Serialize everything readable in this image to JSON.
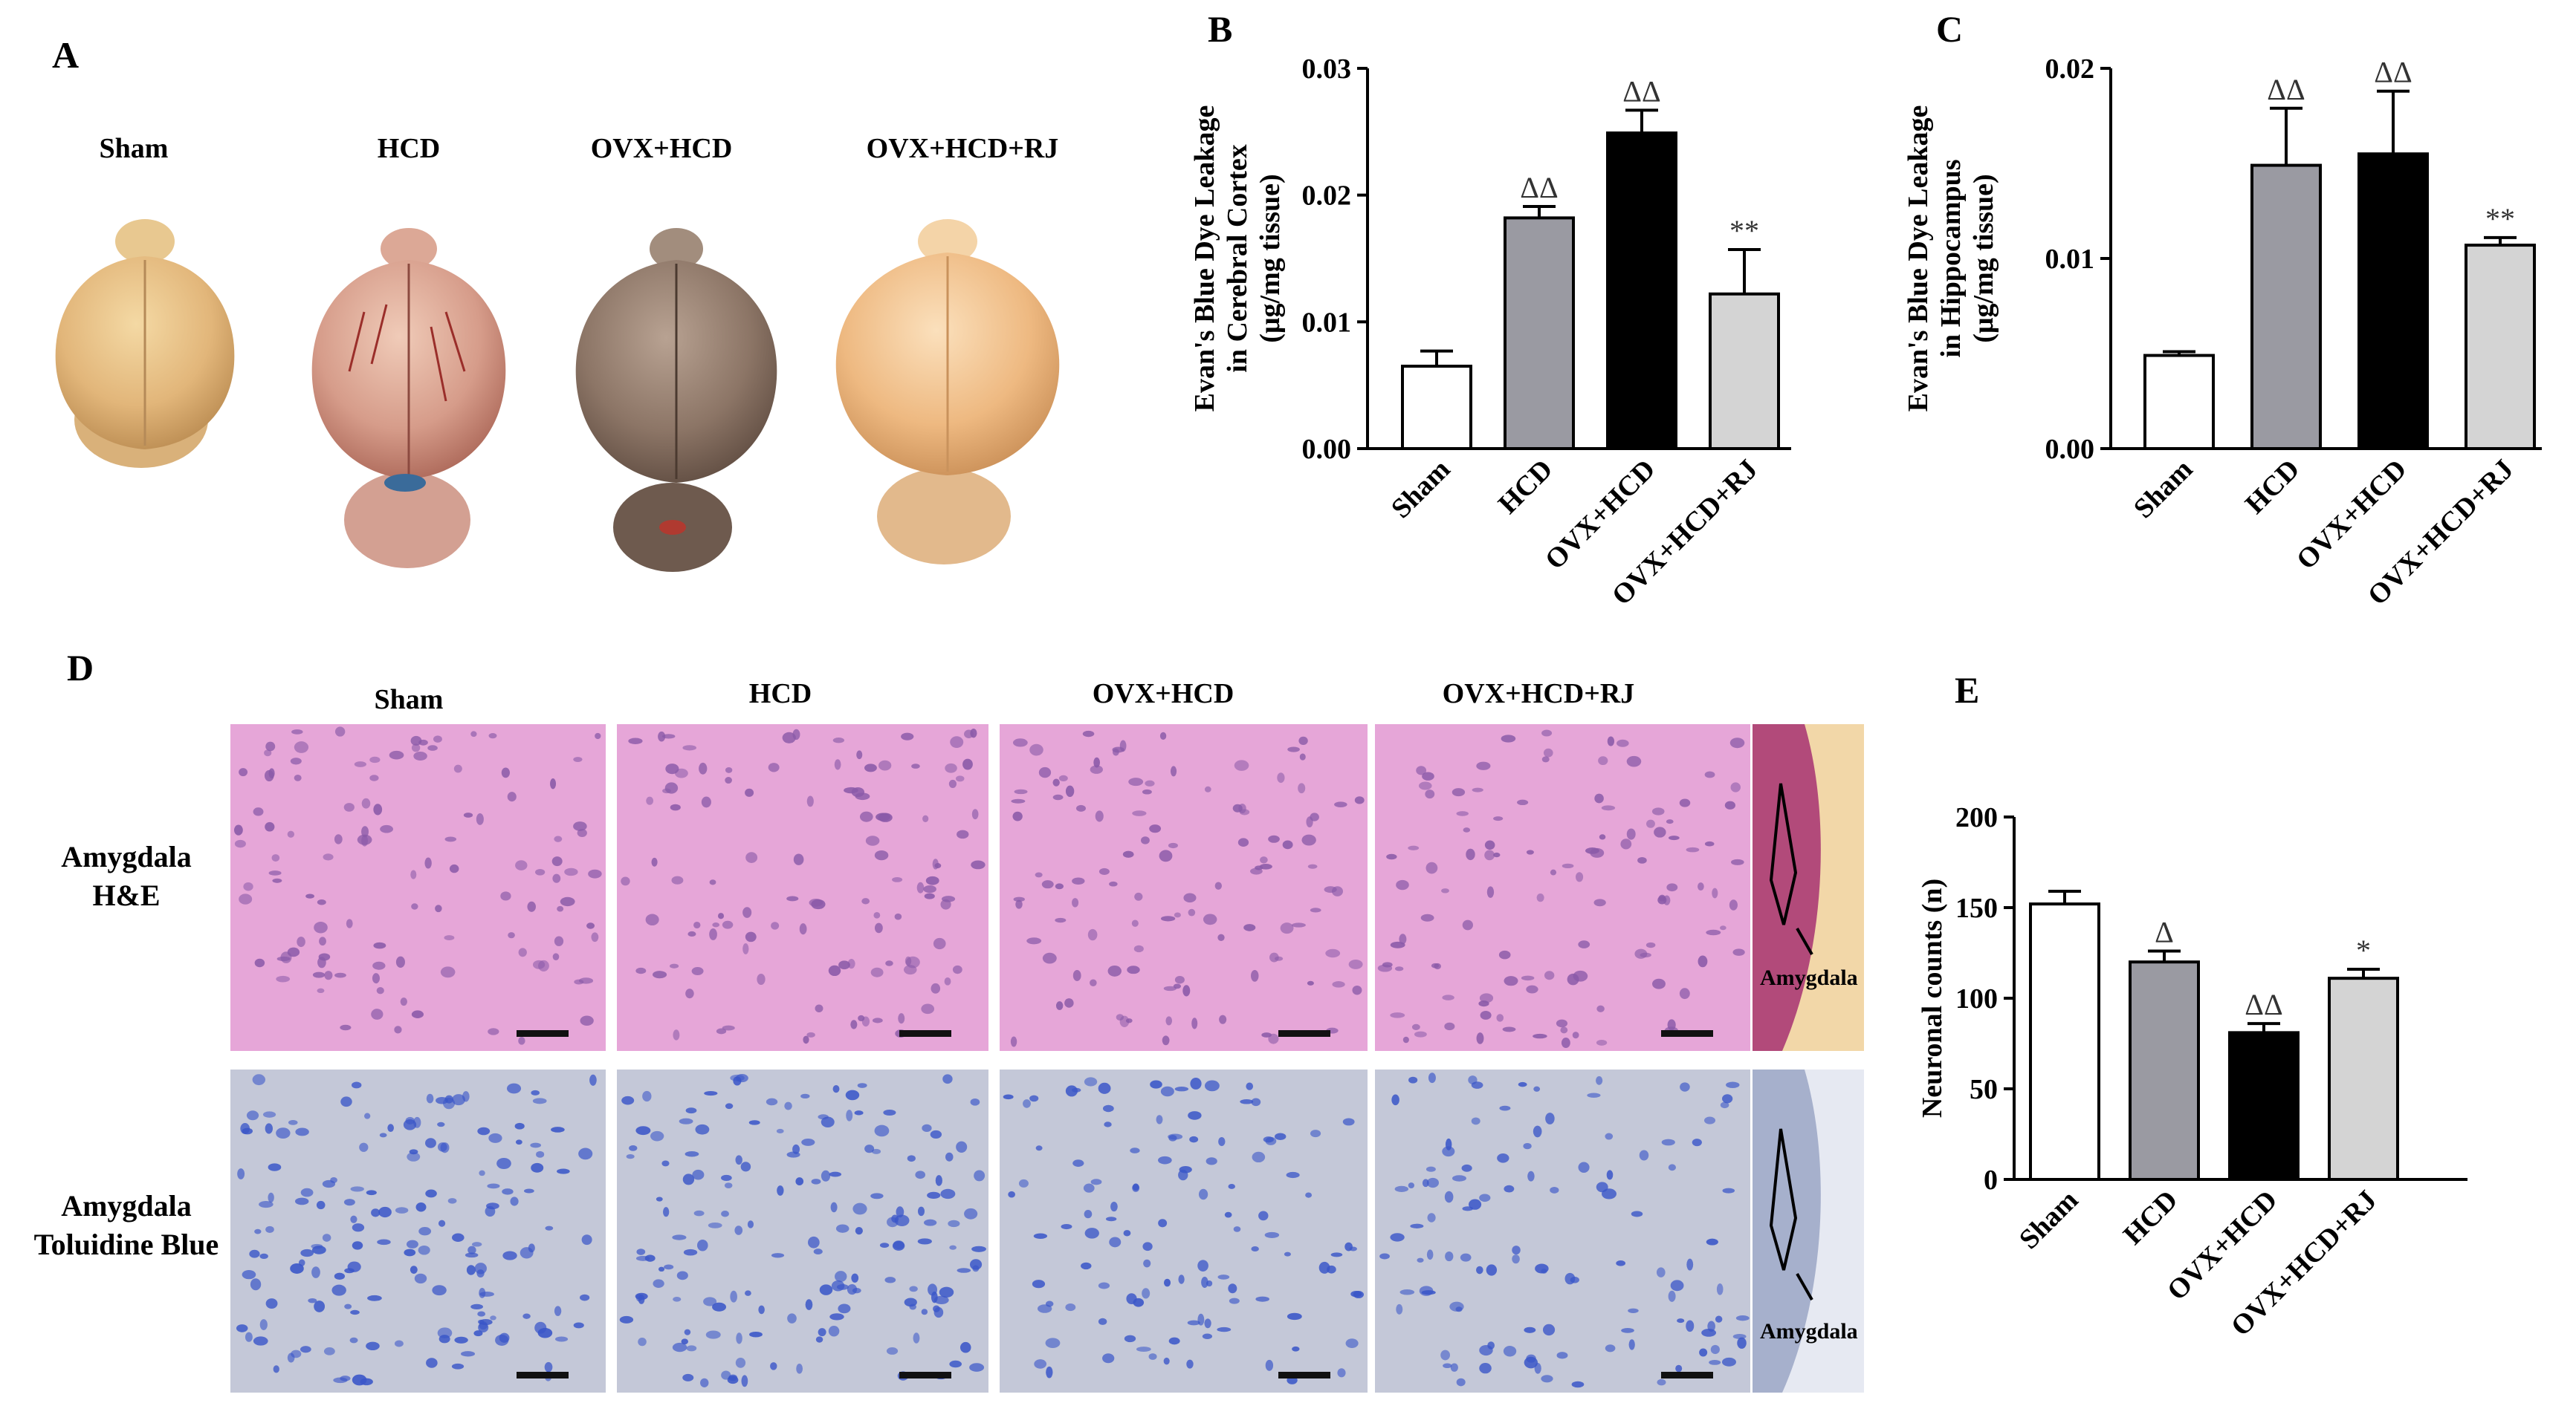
{
  "panels": {
    "A": {
      "letter": "A",
      "groups": [
        "Sham",
        "HCD",
        "OVX+HCD",
        "OVX+HCD+RJ"
      ]
    },
    "D": {
      "letter": "D",
      "columns": [
        "Sham",
        "HCD",
        "OVX+HCD",
        "OVX+HCD+RJ"
      ],
      "rows": [
        {
          "label_line1": "Amygdala",
          "label_line2": "H&E"
        },
        {
          "label_line1": "Amygdala",
          "label_line2": "Toluidine Blue"
        }
      ],
      "inset_label": "Amygdala"
    }
  },
  "colors": {
    "bar_sham": "#ffffff",
    "bar_hcd": "#9a9aa2",
    "bar_ovx_hcd": "#000000",
    "bar_ovx_hcd_rj": "#d4d4d4",
    "he_stain": "#e6a6d8",
    "he_nuclei": "#8a5aa8",
    "tb_stain": "#c4c8d8",
    "tb_nuclei": "#3a56c8"
  },
  "chart_data": [
    {
      "panel": "B",
      "type": "bar",
      "categories": [
        "Sham",
        "HCD",
        "OVX+HCD",
        "OVX+HCD+RJ"
      ],
      "values": [
        0.0065,
        0.0182,
        0.0249,
        0.0122
      ],
      "errors": [
        0.0012,
        0.0009,
        0.0018,
        0.0035
      ],
      "annotations": [
        "",
        "ΔΔ",
        "ΔΔ",
        "**"
      ],
      "ylabel_lines": [
        "Evan's Blue Dye Leakage",
        "in Cerebral Cortex",
        "(μg/mg tissue)"
      ],
      "ylim": [
        0,
        0.03
      ],
      "yticks": [
        0.0,
        0.01,
        0.02,
        0.03
      ],
      "ytick_labels": [
        "0.00",
        "0.01",
        "0.02",
        "0.03"
      ]
    },
    {
      "panel": "C",
      "type": "bar",
      "categories": [
        "Sham",
        "HCD",
        "OVX+HCD",
        "OVX+HCD+RJ"
      ],
      "values": [
        0.0049,
        0.0149,
        0.0155,
        0.0107
      ],
      "errors": [
        0.0002,
        0.003,
        0.0033,
        0.0004
      ],
      "annotations": [
        "",
        "ΔΔ",
        "ΔΔ",
        "**"
      ],
      "ylabel_lines": [
        "Evan's Blue Dye Leakage",
        "in Hippocampus",
        "(μg/mg tissue)"
      ],
      "ylim": [
        0,
        0.02
      ],
      "yticks": [
        0.0,
        0.01,
        0.02
      ],
      "ytick_labels": [
        "0.00",
        "0.01",
        "0.02"
      ]
    },
    {
      "panel": "E",
      "type": "bar",
      "categories": [
        "Sham",
        "HCD",
        "OVX+HCD",
        "OVX+HCD+RJ"
      ],
      "values": [
        152,
        120,
        81,
        111
      ],
      "errors": [
        7,
        6,
        5,
        5
      ],
      "annotations": [
        "",
        "Δ",
        "ΔΔ",
        "*"
      ],
      "ylabel_lines": [
        "Neuronal counts (n)"
      ],
      "ylim": [
        0,
        200
      ],
      "yticks": [
        0,
        50,
        100,
        150,
        200
      ],
      "ytick_labels": [
        "0",
        "50",
        "100",
        "150",
        "200"
      ]
    }
  ]
}
